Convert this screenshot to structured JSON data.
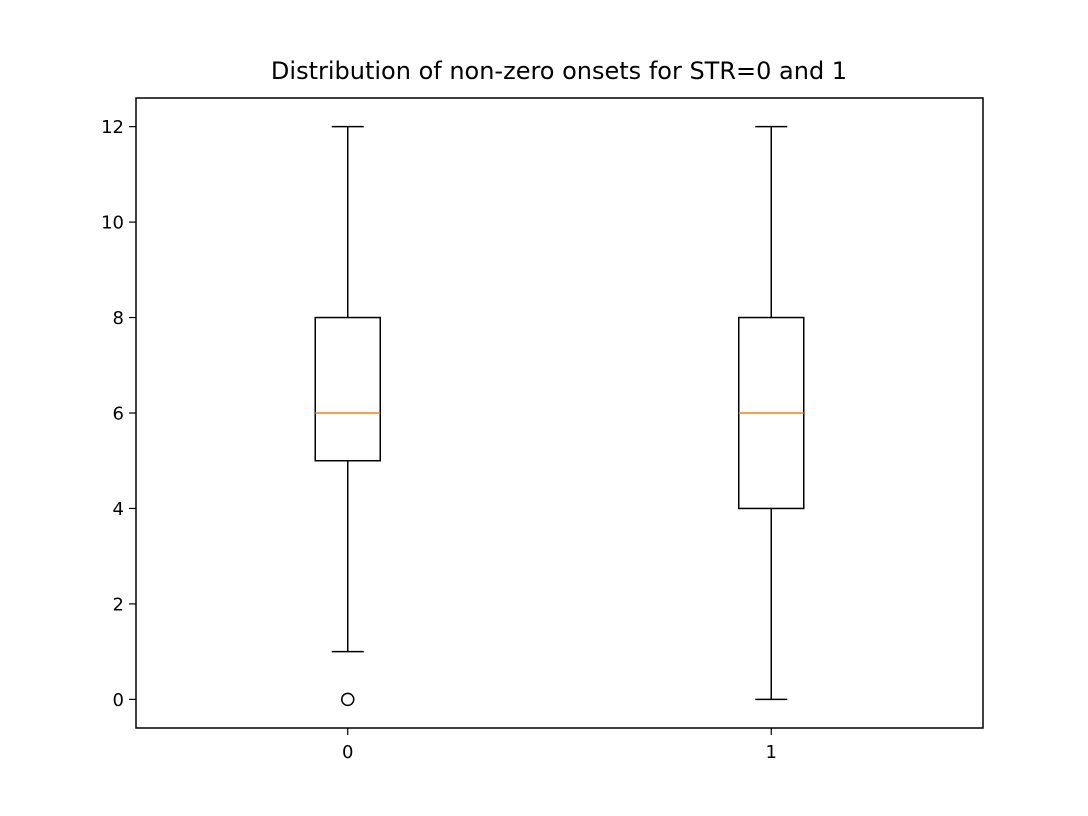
{
  "chart_data": {
    "type": "box",
    "title": "Distribution of non-zero onsets for STR=0 and 1",
    "xlabel": "",
    "ylabel": "",
    "categories": [
      "0",
      "1"
    ],
    "boxes": [
      {
        "category": "0",
        "whisker_low": 1,
        "q1": 5,
        "median": 6,
        "q3": 8,
        "whisker_high": 12,
        "outliers": [
          0
        ]
      },
      {
        "category": "1",
        "whisker_low": 0,
        "q1": 4,
        "median": 6,
        "q3": 8,
        "whisker_high": 12,
        "outliers": []
      }
    ],
    "yticks": [
      0,
      2,
      4,
      6,
      8,
      10,
      12
    ],
    "ytick_labels": [
      "0",
      "2",
      "4",
      "6",
      "8",
      "10",
      "12"
    ],
    "ylim": [
      -0.6,
      12.6
    ],
    "xlim": [
      0.5,
      2.5
    ],
    "grid": false,
    "legend": "none",
    "colors": {
      "box": "#000000",
      "median": "#ff7f0e",
      "outlier": "#000000",
      "axes": "#000000"
    }
  }
}
